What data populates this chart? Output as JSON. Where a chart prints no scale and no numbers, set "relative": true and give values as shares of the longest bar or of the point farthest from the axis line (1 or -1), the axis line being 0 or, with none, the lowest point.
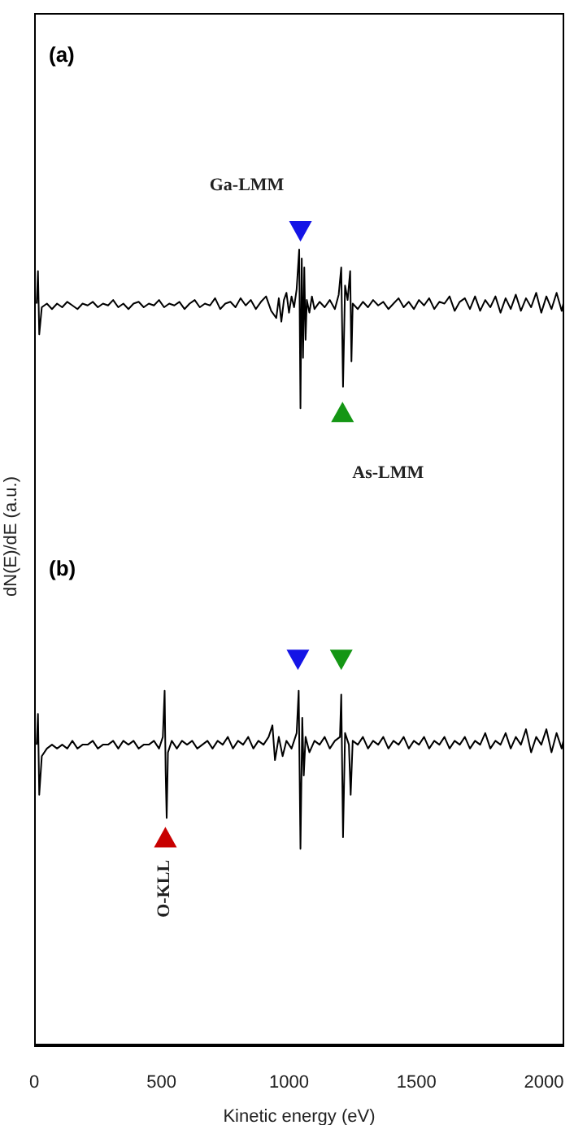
{
  "chart_data": [
    {
      "type": "line",
      "title": "(a)",
      "ylabel": "dN(E)/dE (a.u.)",
      "relative": true,
      "xlim": [
        0,
        2080
      ],
      "tick_labels": false,
      "series": [
        {
          "type": "line",
          "color": "#000000",
          "x": [
            10,
            15,
            20,
            30,
            50,
            70,
            90,
            110,
            130,
            150,
            170,
            190,
            210,
            230,
            250,
            270,
            290,
            310,
            330,
            350,
            370,
            390,
            410,
            430,
            450,
            470,
            490,
            510,
            530,
            550,
            570,
            590,
            610,
            630,
            650,
            670,
            690,
            710,
            730,
            750,
            770,
            790,
            810,
            830,
            850,
            870,
            890,
            910,
            930,
            950,
            960,
            970,
            980,
            990,
            1000,
            1010,
            1020,
            1030,
            1040,
            1045,
            1050,
            1055,
            1060,
            1065,
            1070,
            1080,
            1090,
            1100,
            1120,
            1140,
            1160,
            1180,
            1195,
            1205,
            1212,
            1220,
            1230,
            1240,
            1245,
            1250,
            1270,
            1290,
            1310,
            1330,
            1350,
            1370,
            1390,
            1410,
            1430,
            1450,
            1470,
            1490,
            1510,
            1530,
            1550,
            1570,
            1590,
            1610,
            1630,
            1650,
            1670,
            1690,
            1710,
            1730,
            1750,
            1770,
            1790,
            1810,
            1830,
            1850,
            1870,
            1890,
            1910,
            1930,
            1950,
            1970,
            1990,
            2010,
            2030,
            2050,
            2070,
            2080
          ],
          "values": [
            0.6,
            0.78,
            0.43,
            0.58,
            0.6,
            0.57,
            0.6,
            0.58,
            0.61,
            0.59,
            0.57,
            0.6,
            0.59,
            0.61,
            0.58,
            0.6,
            0.59,
            0.62,
            0.58,
            0.6,
            0.57,
            0.6,
            0.61,
            0.58,
            0.6,
            0.59,
            0.62,
            0.58,
            0.6,
            0.59,
            0.61,
            0.57,
            0.6,
            0.62,
            0.58,
            0.6,
            0.59,
            0.63,
            0.57,
            0.6,
            0.61,
            0.58,
            0.63,
            0.59,
            0.62,
            0.57,
            0.61,
            0.64,
            0.56,
            0.52,
            0.63,
            0.5,
            0.62,
            0.66,
            0.55,
            0.64,
            0.58,
            0.68,
            0.9,
            0.02,
            0.85,
            0.3,
            0.8,
            0.4,
            0.62,
            0.55,
            0.64,
            0.57,
            0.61,
            0.58,
            0.62,
            0.57,
            0.65,
            0.8,
            0.14,
            0.7,
            0.62,
            0.78,
            0.28,
            0.6,
            0.57,
            0.61,
            0.58,
            0.62,
            0.59,
            0.61,
            0.57,
            0.6,
            0.63,
            0.58,
            0.61,
            0.57,
            0.62,
            0.59,
            0.63,
            0.57,
            0.61,
            0.6,
            0.64,
            0.56,
            0.61,
            0.63,
            0.57,
            0.64,
            0.56,
            0.62,
            0.58,
            0.64,
            0.55,
            0.63,
            0.57,
            0.65,
            0.56,
            0.63,
            0.58,
            0.66,
            0.55,
            0.64,
            0.57,
            0.66,
            0.56,
            0.62
          ]
        },
        {
          "type": "scatter",
          "marker": "triangle",
          "color": "#1414e6",
          "x": [
            1045
          ],
          "values": [
            1
          ]
        },
        {
          "type": "scatter",
          "marker": "triangle",
          "color": "#149614",
          "x": [
            1210
          ],
          "values": [
            0
          ]
        }
      ],
      "annotations": [
        {
          "text": "Ga-LMM",
          "x": 1045,
          "y": 1
        },
        {
          "text": "As-LMM",
          "x": 1210,
          "y": 0
        }
      ]
    },
    {
      "type": "line",
      "title": "(b)",
      "xlabel": "Kinetic energy (eV)",
      "relative": true,
      "xlim": [
        0,
        2080
      ],
      "xticks": [
        0,
        500,
        1000,
        1500,
        2000
      ],
      "tick_labels": "x",
      "series": [
        {
          "type": "line",
          "color": "#000000",
          "x": [
            10,
            15,
            20,
            30,
            50,
            70,
            90,
            110,
            130,
            150,
            170,
            190,
            210,
            230,
            250,
            270,
            290,
            310,
            330,
            350,
            370,
            390,
            410,
            430,
            450,
            470,
            490,
            505,
            512,
            516,
            520,
            525,
            540,
            560,
            580,
            600,
            620,
            640,
            660,
            680,
            700,
            720,
            740,
            760,
            780,
            800,
            820,
            840,
            860,
            880,
            900,
            920,
            935,
            945,
            960,
            975,
            990,
            1010,
            1030,
            1038,
            1045,
            1052,
            1058,
            1065,
            1080,
            1100,
            1120,
            1140,
            1160,
            1180,
            1200,
            1205,
            1212,
            1220,
            1235,
            1242,
            1250,
            1270,
            1290,
            1310,
            1330,
            1350,
            1370,
            1390,
            1410,
            1430,
            1450,
            1470,
            1490,
            1510,
            1530,
            1550,
            1570,
            1590,
            1610,
            1630,
            1650,
            1670,
            1690,
            1710,
            1730,
            1750,
            1770,
            1790,
            1810,
            1830,
            1850,
            1870,
            1890,
            1910,
            1930,
            1950,
            1970,
            1990,
            2010,
            2030,
            2050,
            2070,
            2080
          ],
          "values": [
            0.78,
            0.86,
            0.65,
            0.75,
            0.77,
            0.78,
            0.77,
            0.78,
            0.77,
            0.79,
            0.77,
            0.78,
            0.78,
            0.79,
            0.77,
            0.78,
            0.78,
            0.79,
            0.77,
            0.79,
            0.78,
            0.79,
            0.77,
            0.78,
            0.78,
            0.79,
            0.77,
            0.8,
            0.92,
            0.71,
            0.59,
            0.76,
            0.79,
            0.77,
            0.79,
            0.78,
            0.79,
            0.77,
            0.78,
            0.79,
            0.77,
            0.79,
            0.78,
            0.8,
            0.77,
            0.79,
            0.78,
            0.8,
            0.77,
            0.79,
            0.78,
            0.8,
            0.83,
            0.74,
            0.8,
            0.75,
            0.79,
            0.77,
            0.81,
            0.92,
            0.51,
            0.85,
            0.7,
            0.8,
            0.76,
            0.79,
            0.78,
            0.8,
            0.77,
            0.79,
            0.8,
            0.91,
            0.54,
            0.81,
            0.78,
            0.65,
            0.79,
            0.78,
            0.8,
            0.77,
            0.79,
            0.78,
            0.8,
            0.77,
            0.79,
            0.78,
            0.8,
            0.77,
            0.79,
            0.78,
            0.8,
            0.77,
            0.79,
            0.78,
            0.8,
            0.77,
            0.79,
            0.78,
            0.8,
            0.77,
            0.79,
            0.78,
            0.81,
            0.77,
            0.79,
            0.78,
            0.81,
            0.77,
            0.8,
            0.78,
            0.82,
            0.76,
            0.8,
            0.78,
            0.82,
            0.76,
            0.81,
            0.77,
            0.8
          ]
        },
        {
          "type": "scatter",
          "marker": "triangle",
          "color": "#1414e6",
          "x": [
            1035
          ],
          "values": [
            1
          ]
        },
        {
          "type": "scatter",
          "marker": "triangle",
          "color": "#149614",
          "x": [
            1205
          ],
          "values": [
            1
          ]
        },
        {
          "type": "scatter",
          "marker": "triangle",
          "color": "#c80000",
          "x": [
            515
          ],
          "values": [
            0.54
          ]
        }
      ],
      "annotations": [
        {
          "text": "O-KLL",
          "x": 515,
          "y": 0.54
        }
      ]
    }
  ]
}
